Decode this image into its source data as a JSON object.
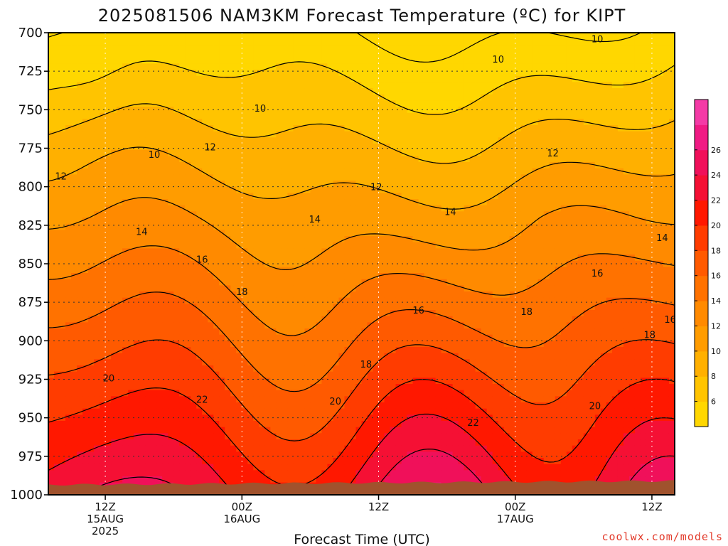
{
  "chart_data": {
    "type": "heatmap",
    "title": "2025081506 NAM3KM Forecast Temperature (ºC) for KIPT",
    "xlabel": "Forecast Time (UTC)",
    "ylabel": "",
    "y_ticks": [
      700,
      725,
      750,
      775,
      800,
      825,
      850,
      875,
      900,
      925,
      950,
      975,
      1000
    ],
    "y_tick_labels": [
      "700",
      "725",
      "750",
      "775",
      "800",
      "825",
      "850",
      "875",
      "900",
      "925",
      "950",
      "975",
      "1000"
    ],
    "ylim": [
      700,
      1000
    ],
    "y_inverted": true,
    "xlim": [
      7,
      62
    ],
    "x_ticks": [
      {
        "hour": 12,
        "lines": [
          "12Z",
          "15AUG",
          "2025"
        ]
      },
      {
        "hour": 24,
        "lines": [
          "00Z",
          "16AUG"
        ]
      },
      {
        "hour": 36,
        "lines": [
          "12Z"
        ]
      },
      {
        "hour": 48,
        "lines": [
          "00Z",
          "17AUG"
        ]
      },
      {
        "hour": 60,
        "lines": [
          "12Z"
        ]
      }
    ],
    "contour_levels": [
      4,
      6,
      8,
      10,
      12,
      14,
      16,
      18,
      20,
      22,
      24,
      26,
      28
    ],
    "colorbar": {
      "tick_labels": [
        "6",
        "8",
        "10",
        "12",
        "14",
        "16",
        "18",
        "20",
        "22",
        "24",
        "26"
      ],
      "colors": [
        "#ffd700",
        "#ffc400",
        "#ffb000",
        "#ff9c00",
        "#ff8a00",
        "#ff7200",
        "#ff5a00",
        "#ff3c00",
        "#ff1800",
        "#f51034",
        "#f0105a",
        "#f01a84",
        "#f43aa6"
      ]
    },
    "grid": true,
    "ground_color": "#a0522d",
    "contour_labels": [
      {
        "text": "10",
        "hour": 16.3,
        "p": 779
      },
      {
        "text": "10",
        "hour": 25.6,
        "p": 749
      },
      {
        "text": "10",
        "hour": 46.5,
        "p": 717
      },
      {
        "text": "10",
        "hour": 55.2,
        "p": 704
      },
      {
        "text": "12",
        "hour": 8.1,
        "p": 793
      },
      {
        "text": "12",
        "hour": 21.2,
        "p": 774
      },
      {
        "text": "12",
        "hour": 35.8,
        "p": 800
      },
      {
        "text": "12",
        "hour": 51.3,
        "p": 778
      },
      {
        "text": "14",
        "hour": 15.2,
        "p": 829
      },
      {
        "text": "14",
        "hour": 30.4,
        "p": 821
      },
      {
        "text": "14",
        "hour": 42.3,
        "p": 816
      },
      {
        "text": "14",
        "hour": 60.9,
        "p": 833
      },
      {
        "text": "16",
        "hour": 20.5,
        "p": 847
      },
      {
        "text": "16",
        "hour": 39.5,
        "p": 880
      },
      {
        "text": "16",
        "hour": 55.2,
        "p": 856
      },
      {
        "text": "16",
        "hour": 61.6,
        "p": 886
      },
      {
        "text": "18",
        "hour": 24.0,
        "p": 868
      },
      {
        "text": "18",
        "hour": 34.9,
        "p": 915
      },
      {
        "text": "18",
        "hour": 49.0,
        "p": 881
      },
      {
        "text": "18",
        "hour": 59.8,
        "p": 896
      },
      {
        "text": "20",
        "hour": 12.3,
        "p": 924
      },
      {
        "text": "20",
        "hour": 32.2,
        "p": 939
      },
      {
        "text": "20",
        "hour": 55.0,
        "p": 942
      },
      {
        "text": "22",
        "hour": 20.5,
        "p": 938
      },
      {
        "text": "22",
        "hour": 44.3,
        "p": 953
      }
    ]
  },
  "credit": "coolwx.com/models"
}
